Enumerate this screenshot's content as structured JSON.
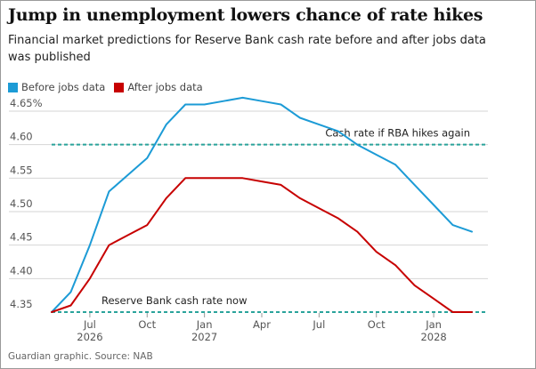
{
  "title": "Jump in unemployment lowers chance of rate hikes",
  "subtitle": "Financial market predictions for Reserve Bank cash rate before and after jobs data was published",
  "source": "Guardian graphic. Source: NAB",
  "colors": {
    "before": "#1c9bd6",
    "after": "#c70000",
    "reference": "#2aa39b",
    "grid": "#d6d6d6"
  },
  "chart_data": {
    "type": "line",
    "x_months": [
      "2026-05",
      "2026-06",
      "2026-07",
      "2026-08",
      "2026-09",
      "2026-10",
      "2026-11",
      "2026-12",
      "2027-01",
      "2027-02",
      "2027-03",
      "2027-04",
      "2027-05",
      "2027-06",
      "2027-07",
      "2027-08",
      "2027-09",
      "2027-10",
      "2027-11",
      "2027-12",
      "2028-01",
      "2028-02",
      "2028-03"
    ],
    "series": [
      {
        "name": "Before jobs data",
        "values": [
          4.35,
          4.38,
          4.45,
          4.53,
          4.555,
          4.58,
          4.63,
          4.66,
          4.66,
          4.665,
          4.67,
          4.665,
          4.66,
          4.64,
          4.63,
          4.62,
          4.6,
          4.585,
          4.57,
          4.54,
          4.51,
          4.48,
          4.47
        ]
      },
      {
        "name": "After jobs data",
        "values": [
          4.35,
          4.36,
          4.4,
          4.45,
          4.465,
          4.48,
          4.52,
          4.55,
          4.55,
          4.55,
          4.55,
          4.545,
          4.54,
          4.52,
          4.505,
          4.49,
          4.47,
          4.44,
          4.42,
          4.39,
          4.37,
          4.35,
          4.35
        ]
      }
    ],
    "reference_lines": [
      {
        "label": "Cash rate if RBA hikes again",
        "value": 4.6
      },
      {
        "label": "Reserve Bank cash rate now",
        "value": 4.35
      }
    ],
    "y_ticks": [
      "4.35",
      "4.40",
      "4.45",
      "4.50",
      "4.55",
      "4.60",
      "4.65%"
    ],
    "y_tick_values": [
      4.35,
      4.4,
      4.45,
      4.5,
      4.55,
      4.6,
      4.65
    ],
    "ylim": [
      4.35,
      4.67
    ],
    "x_ticks": [
      {
        "month": "2026-07",
        "label": "Jul",
        "year": "2026"
      },
      {
        "month": "2026-10",
        "label": "Oct",
        "year": ""
      },
      {
        "month": "2027-01",
        "label": "Jan",
        "year": "2027"
      },
      {
        "month": "2027-04",
        "label": "Apr",
        "year": ""
      },
      {
        "month": "2027-07",
        "label": "Jul",
        "year": ""
      },
      {
        "month": "2027-10",
        "label": "Oct",
        "year": ""
      },
      {
        "month": "2028-01",
        "label": "Jan",
        "year": "2028"
      }
    ],
    "legend_position": "top-left",
    "grid": true
  }
}
